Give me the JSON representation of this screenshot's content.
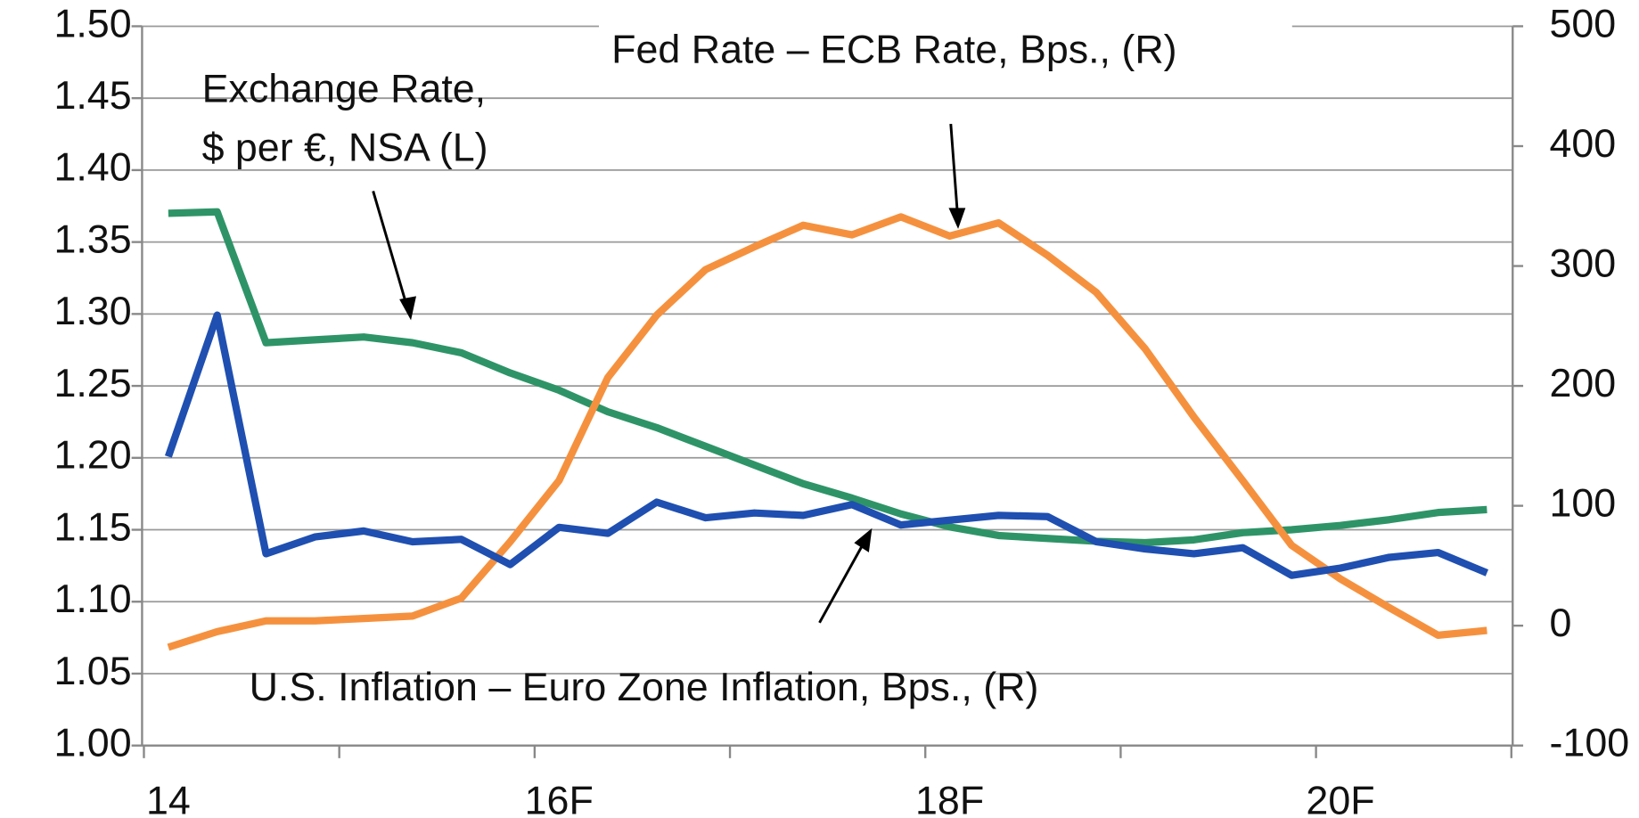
{
  "chart_data": {
    "type": "line",
    "categories": [
      "14",
      null,
      null,
      null,
      null,
      null,
      null,
      null,
      "16F",
      null,
      null,
      null,
      null,
      null,
      null,
      null,
      "18F",
      null,
      null,
      null,
      null,
      null,
      null,
      null,
      "20F",
      null,
      null,
      null
    ],
    "ylim": [
      1.0,
      1.5
    ],
    "yticks": [
      {
        "value": 1.0,
        "label": "1.00"
      },
      {
        "value": 1.05,
        "label": "1.05"
      },
      {
        "value": 1.1,
        "label": "1.10"
      },
      {
        "value": 1.15,
        "label": "1.15"
      },
      {
        "value": 1.2,
        "label": "1.20"
      },
      {
        "value": 1.25,
        "label": "1.25"
      },
      {
        "value": 1.3,
        "label": "1.30"
      },
      {
        "value": 1.35,
        "label": "1.35"
      },
      {
        "value": 1.4,
        "label": "1.40"
      },
      {
        "value": 1.45,
        "label": "1.45"
      },
      {
        "value": 1.5,
        "label": "1.50"
      }
    ],
    "y2lim": [
      -100,
      500
    ],
    "y2ticks": [
      -100,
      0,
      100,
      200,
      300,
      400,
      500
    ],
    "grid": true,
    "series": [
      {
        "label_lines": [
          "Exchange Rate,",
          "$ per €, NSA (L)"
        ],
        "color": "#2e9467",
        "values": [
          1.37,
          1.371,
          1.28,
          1.282,
          1.284,
          1.28,
          1.273,
          1.259,
          1.247,
          1.232,
          1.221,
          1.208,
          1.195,
          1.182,
          1.172,
          1.161,
          1.152,
          1.146,
          1.144,
          1.142,
          1.141,
          1.143,
          1.148,
          1.15,
          1.153,
          1.157,
          1.162,
          1.164
        ]
      },
      {
        "label_lines": [
          "Fed Rate – ECB Rate, Bps., (R)"
        ],
        "color": "#f5913e",
        "axis": "y2",
        "values": [
          -18,
          -5,
          4,
          4,
          6,
          8,
          23,
          70,
          121,
          207,
          259,
          297,
          316,
          334,
          326,
          341,
          325,
          336,
          309,
          278,
          231,
          174,
          121,
          67,
          39,
          15,
          -8,
          -4
        ]
      },
      {
        "label_lines": [
          "U.S. Inflation – Euro Zone Inflation, Bps., (R)"
        ],
        "color": "#1f4fb0",
        "axis": "y2",
        "values": [
          141,
          259,
          60,
          74,
          79,
          70,
          72,
          51,
          82,
          77,
          103,
          90,
          94,
          92,
          101,
          84,
          88,
          92,
          91,
          70,
          64,
          60,
          65,
          42,
          48,
          57,
          61,
          44
        ]
      }
    ]
  }
}
